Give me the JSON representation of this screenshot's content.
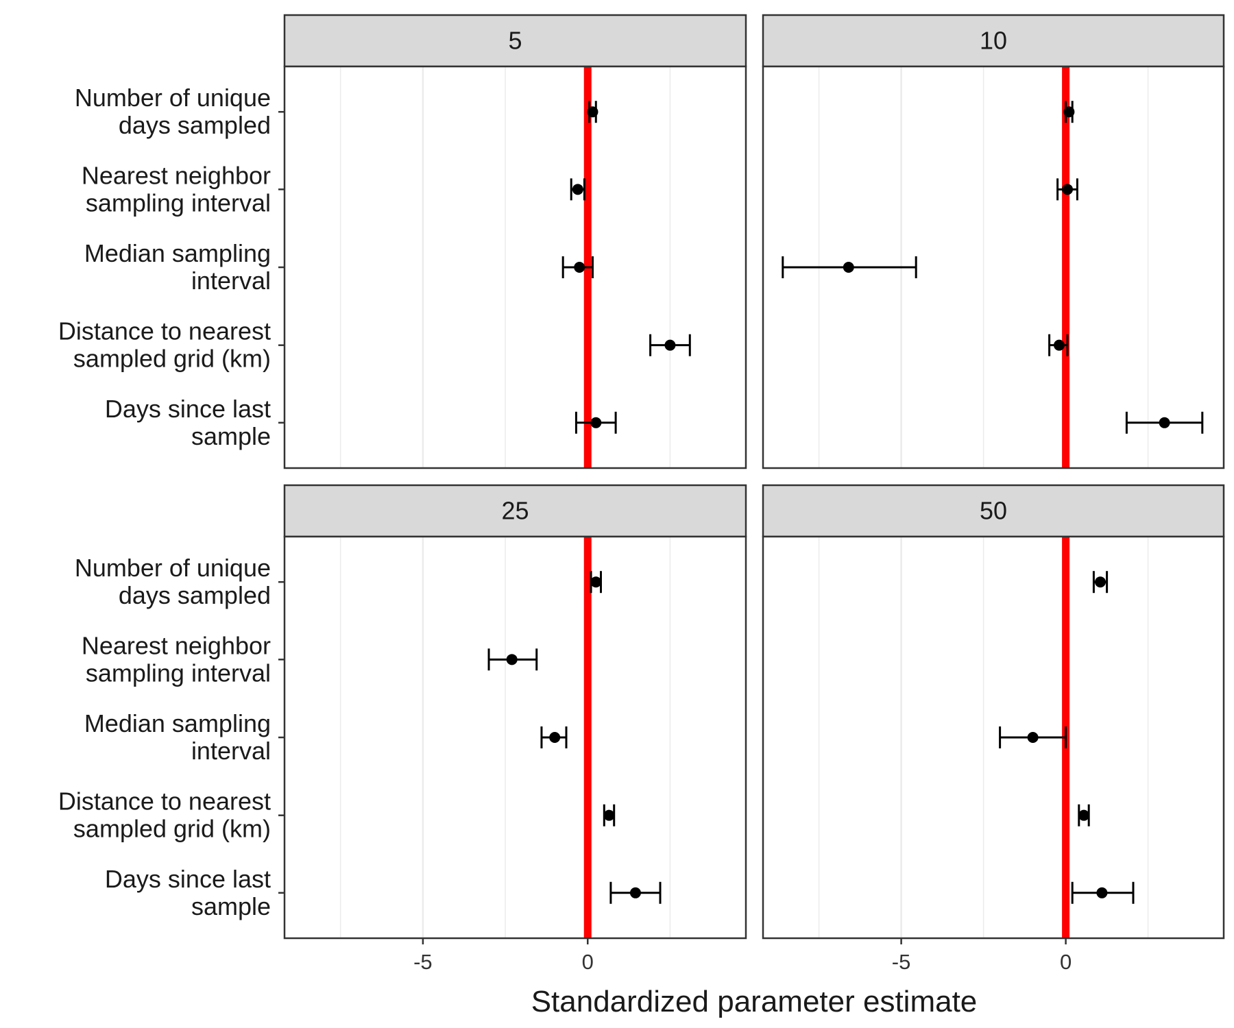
{
  "chart_data": {
    "type": "scatter",
    "chart_kind": "faceted dot-and-whisker plot (point estimates with error bars)",
    "xlabel": "Standardized parameter estimate",
    "ylabel": "",
    "xlim": [
      -9.2,
      4.8
    ],
    "xticks": [
      -5,
      0
    ],
    "x_grid_minor": [
      -7.5,
      -2.5,
      2.5
    ],
    "reference_line": {
      "x": 0,
      "color": "#ff0000"
    },
    "grid": true,
    "facet_layout": {
      "rows": 2,
      "cols": 2
    },
    "categories": [
      "Number of unique days sampled",
      "Nearest neighbor sampling interval",
      "Median sampling interval",
      "Distance to nearest sampled grid (km)",
      "Days since last sample"
    ],
    "category_lines": [
      [
        "Number of unique",
        "days sampled"
      ],
      [
        "Nearest neighbor",
        "sampling interval"
      ],
      [
        "Median sampling",
        "interval"
      ],
      [
        "Distance to nearest",
        "sampled grid (km)"
      ],
      [
        "Days since last",
        "sample"
      ]
    ],
    "facets": [
      {
        "label": "5",
        "estimates": [
          0.15,
          -0.3,
          -0.25,
          2.5,
          0.25
        ],
        "lower": [
          0.05,
          -0.5,
          -0.75,
          1.9,
          -0.35
        ],
        "upper": [
          0.25,
          -0.1,
          0.15,
          3.1,
          0.85
        ]
      },
      {
        "label": "10",
        "estimates": [
          0.1,
          0.05,
          -6.6,
          -0.2,
          3.0
        ],
        "lower": [
          0.0,
          -0.25,
          -8.6,
          -0.5,
          1.85
        ],
        "upper": [
          0.2,
          0.35,
          -4.55,
          0.05,
          4.15
        ]
      },
      {
        "label": "25",
        "estimates": [
          0.25,
          -2.3,
          -1.0,
          0.65,
          1.45
        ],
        "lower": [
          0.1,
          -3.0,
          -1.4,
          0.5,
          0.7
        ],
        "upper": [
          0.4,
          -1.55,
          -0.65,
          0.8,
          2.2
        ]
      },
      {
        "label": "50",
        "estimates": [
          1.05,
          null,
          -1.0,
          0.55,
          1.1
        ],
        "lower": [
          0.85,
          null,
          -2.0,
          0.4,
          0.2
        ],
        "upper": [
          1.25,
          null,
          0.0,
          0.7,
          2.05
        ]
      }
    ]
  },
  "colors": {
    "reference_line": "#ff0000",
    "strip_fill": "#d9d9d9",
    "panel_border": "#333333",
    "grid": "#ebebeb",
    "point": "#000000"
  }
}
